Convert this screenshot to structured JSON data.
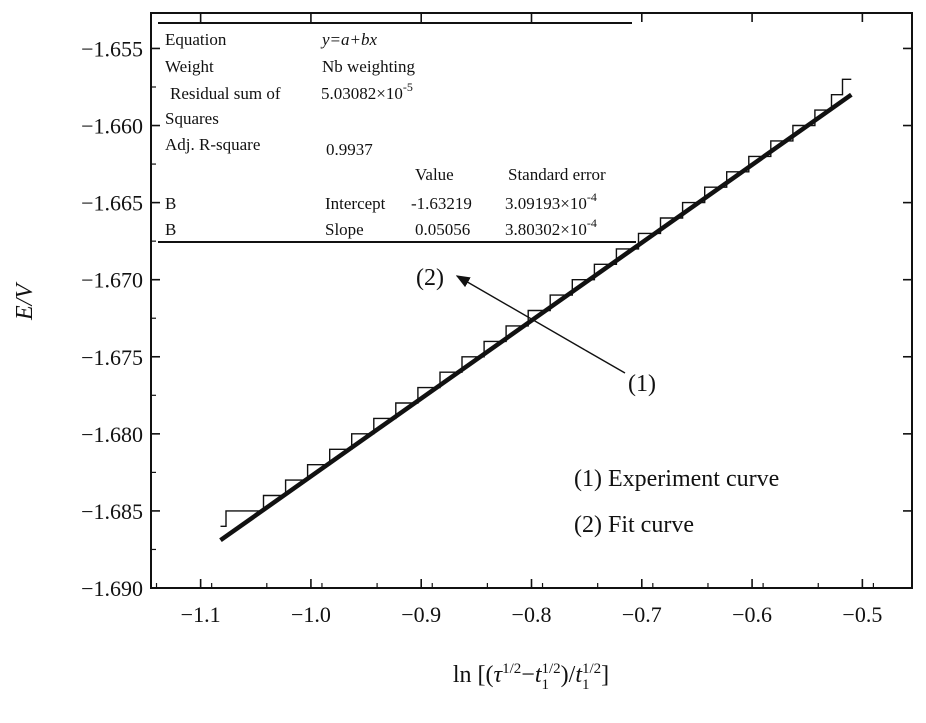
{
  "chart_data": {
    "type": "line",
    "title": "",
    "xlabel": "ln [(τ1/2−t11/2)/t11/2]",
    "ylabel": "E/V",
    "xlim": [
      -1.145,
      -0.455
    ],
    "ylim": [
      -1.69,
      -1.6527
    ],
    "xticks": [
      -1.1,
      -1.0,
      -0.9,
      -0.8,
      -0.7,
      -0.6,
      -0.5
    ],
    "xtick_labels": [
      "−1.1",
      "−1.0",
      "−0.9",
      "−0.8",
      "−0.7",
      "−0.6",
      "−0.5"
    ],
    "yticks": [
      -1.69,
      -1.685,
      -1.68,
      -1.675,
      -1.67,
      -1.665,
      -1.66,
      -1.655
    ],
    "ytick_labels": [
      "−1.690",
      "−1.685",
      "−1.680",
      "−1.675",
      "−1.670",
      "−1.665",
      "−1.660",
      "−1.655"
    ],
    "grid": false,
    "series": [
      {
        "name": "(1) Experiment curve",
        "style": "stepped thin",
        "x_range": [
          -1.082,
          -0.51
        ],
        "steps": [
          {
            "x_end": -1.077,
            "y": -1.686
          },
          {
            "x_end": -1.043,
            "y": -1.685
          },
          {
            "x_end": -1.023,
            "y": -1.684
          },
          {
            "x_end": -1.003,
            "y": -1.683
          },
          {
            "x_end": -0.983,
            "y": -1.682
          },
          {
            "x_end": -0.963,
            "y": -1.681
          },
          {
            "x_end": -0.943,
            "y": -1.68
          },
          {
            "x_end": -0.923,
            "y": -1.679
          },
          {
            "x_end": -0.903,
            "y": -1.678
          },
          {
            "x_end": -0.883,
            "y": -1.677
          },
          {
            "x_end": -0.863,
            "y": -1.676
          },
          {
            "x_end": -0.843,
            "y": -1.675
          },
          {
            "x_end": -0.823,
            "y": -1.674
          },
          {
            "x_end": -0.803,
            "y": -1.673
          },
          {
            "x_end": -0.783,
            "y": -1.672
          },
          {
            "x_end": -0.763,
            "y": -1.671
          },
          {
            "x_end": -0.743,
            "y": -1.67
          },
          {
            "x_end": -0.723,
            "y": -1.669
          },
          {
            "x_end": -0.703,
            "y": -1.668
          },
          {
            "x_end": -0.683,
            "y": -1.667
          },
          {
            "x_end": -0.663,
            "y": -1.666
          },
          {
            "x_end": -0.643,
            "y": -1.665
          },
          {
            "x_end": -0.623,
            "y": -1.664
          },
          {
            "x_end": -0.603,
            "y": -1.663
          },
          {
            "x_end": -0.583,
            "y": -1.662
          },
          {
            "x_end": -0.563,
            "y": -1.661
          },
          {
            "x_end": -0.543,
            "y": -1.66
          },
          {
            "x_end": -0.528,
            "y": -1.659
          },
          {
            "x_end": -0.518,
            "y": -1.658
          },
          {
            "x_end": -0.51,
            "y": -1.657
          }
        ]
      },
      {
        "name": "(2) Fit curve",
        "style": "thick solid",
        "x": [
          -1.082,
          -0.51
        ],
        "y": [
          -1.6869,
          -1.658
        ]
      }
    ],
    "fit_table": {
      "rows": [
        [
          "Equation",
          "",
          "y=a+bx",
          ""
        ],
        [
          "Weight",
          "",
          "Nb weighting",
          ""
        ],
        [
          "Residual sum of",
          "",
          "5.03082×10",
          ""
        ],
        [
          "Squares",
          "",
          "",
          ""
        ],
        [
          "Adj. R-square",
          "",
          "0.9937",
          ""
        ],
        [
          "",
          "",
          "Value",
          "Standard error"
        ],
        [
          "B",
          "Intercept",
          "-1.63219",
          "3.09193×10"
        ],
        [
          "B",
          "Slope",
          "0.05056",
          "3.80302×10"
        ]
      ],
      "residual_exponent": "-5",
      "intercept_se_exponent": "-4",
      "slope_se_exponent": "-4"
    },
    "annotations": [
      {
        "text": "(2)",
        "points_to": "fit curve"
      },
      {
        "text": "(1)",
        "points_to": "experiment curve"
      }
    ],
    "legend": [
      "(1) Experiment curve",
      "(2) Fit curve"
    ],
    "legend_position": "bottom-right"
  }
}
